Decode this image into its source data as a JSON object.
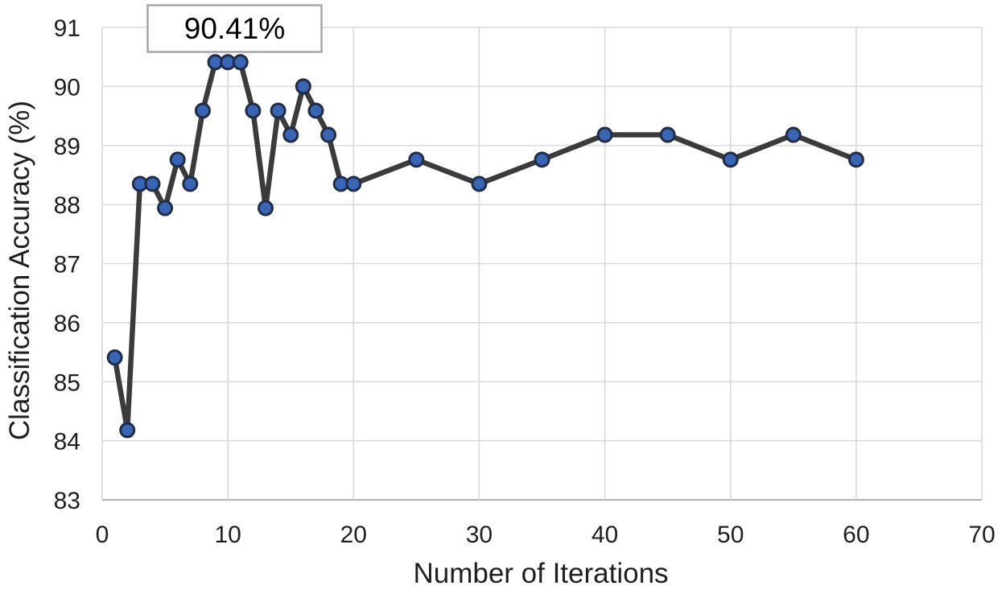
{
  "chart_data": {
    "type": "line",
    "title": "",
    "xlabel": "Number of Iterations",
    "ylabel": "Classification Accuracy (%)",
    "xlim": [
      0,
      70
    ],
    "ylim": [
      83,
      91
    ],
    "x_ticks": [
      0,
      10,
      20,
      30,
      40,
      50,
      60,
      70
    ],
    "y_ticks": [
      83,
      84,
      85,
      86,
      87,
      88,
      89,
      90,
      91
    ],
    "grid": true,
    "legend_position": "none",
    "annotation": {
      "text": "90.41%"
    },
    "series": [
      {
        "name": "classification-accuracy",
        "x": [
          1,
          2,
          3,
          4,
          5,
          6,
          7,
          8,
          9,
          10,
          11,
          12,
          13,
          14,
          15,
          16,
          17,
          18,
          19,
          20,
          25,
          30,
          35,
          40,
          45,
          50,
          55,
          60
        ],
        "values": [
          85.41,
          84.18,
          88.35,
          88.35,
          87.94,
          88.76,
          88.35,
          89.59,
          90.41,
          90.41,
          90.41,
          89.59,
          87.94,
          89.59,
          89.18,
          90.0,
          89.59,
          89.18,
          88.35,
          88.35,
          88.76,
          88.35,
          88.76,
          89.18,
          89.18,
          88.76,
          89.18,
          88.76
        ]
      }
    ],
    "style": {
      "line_color": "#3b3b3b",
      "marker_fill": "#3a64b4",
      "marker_stroke": "#212c47",
      "gridline_color": "#d9d9d9",
      "axis_line_color": "#b3b3b3",
      "text_color": "#1f1f1f",
      "annotation_border_color": "#a6a6a6",
      "background": "#ffffff"
    }
  }
}
